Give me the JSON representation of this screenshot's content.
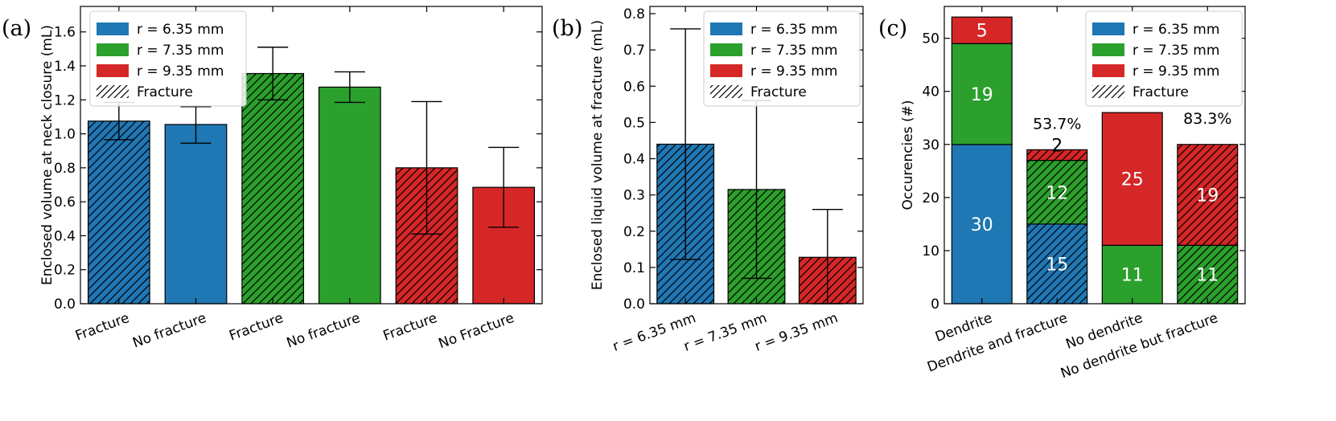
{
  "legend": [
    {
      "label": "r = 6.35 mm",
      "color": "#1f77b4",
      "hatch": false
    },
    {
      "label": "r = 7.35 mm",
      "color": "#2ca02c",
      "hatch": false
    },
    {
      "label": "r = 9.35 mm",
      "color": "#d62728",
      "hatch": false
    },
    {
      "label": "Fracture",
      "color": "#ffffff",
      "hatch": true
    }
  ],
  "chart_data": [
    {
      "panel": "(a)",
      "type": "bar",
      "ylabel": "Enclosed volume at neck closure (mL)",
      "ylim": [
        0,
        1.75
      ],
      "yticks": [
        0.0,
        0.2,
        0.4,
        0.6,
        0.8,
        1.0,
        1.2,
        1.4,
        1.6
      ],
      "categories": [
        "Fracture",
        "No fracture",
        "Fracture",
        "No fracture",
        "Fracture",
        "No Fracture"
      ],
      "values": [
        1.075,
        1.055,
        1.355,
        1.275,
        0.8,
        0.685
      ],
      "error_low": [
        0.965,
        0.945,
        1.2,
        1.185,
        0.41,
        0.45
      ],
      "error_high": [
        1.185,
        1.16,
        1.51,
        1.365,
        1.19,
        0.92
      ],
      "colors": [
        "#1f77b4",
        "#1f77b4",
        "#2ca02c",
        "#2ca02c",
        "#d62728",
        "#d62728"
      ],
      "hatch": [
        true,
        false,
        true,
        false,
        true,
        false
      ]
    },
    {
      "panel": "(b)",
      "type": "bar",
      "ylabel": "Enclosed liquid volume at fracture (mL)",
      "ylim": [
        0,
        0.82
      ],
      "yticks": [
        0.0,
        0.1,
        0.2,
        0.3,
        0.4,
        0.5,
        0.6,
        0.7,
        0.8
      ],
      "categories": [
        "r = 6.35 mm",
        "r = 7.35 mm",
        "r = 9.35 mm"
      ],
      "values": [
        0.44,
        0.315,
        0.128
      ],
      "error_low": [
        0.122,
        0.07,
        0.0
      ],
      "error_high": [
        0.758,
        0.56,
        0.26
      ],
      "colors": [
        "#1f77b4",
        "#2ca02c",
        "#d62728"
      ],
      "hatch": [
        true,
        true,
        true
      ]
    },
    {
      "panel": "(c)",
      "type": "bar",
      "stacked": true,
      "ylabel": "Occurencies (#)",
      "ylim": [
        0,
        56
      ],
      "yticks": [
        0,
        10,
        20,
        30,
        40,
        50
      ],
      "categories": [
        "Dendrite",
        "Dendrite and fracture",
        "No dendrite",
        "No dendrite but fracture"
      ],
      "series": [
        {
          "values": [
            30,
            15,
            0,
            0
          ],
          "color": "#1f77b4"
        },
        {
          "values": [
            19,
            12,
            11,
            11
          ],
          "color": "#2ca02c"
        },
        {
          "values": [
            5,
            2,
            25,
            19
          ],
          "color": "#d62728"
        }
      ],
      "hatch": [
        false,
        true,
        false,
        true
      ],
      "segment_labels": [
        [
          "30",
          "19",
          "5"
        ],
        [
          "15",
          "12",
          "2"
        ],
        [
          "",
          "11",
          "25"
        ],
        [
          "",
          "11",
          "19"
        ]
      ],
      "annotations": [
        "",
        "53.7%",
        "",
        "83.3%"
      ]
    }
  ]
}
